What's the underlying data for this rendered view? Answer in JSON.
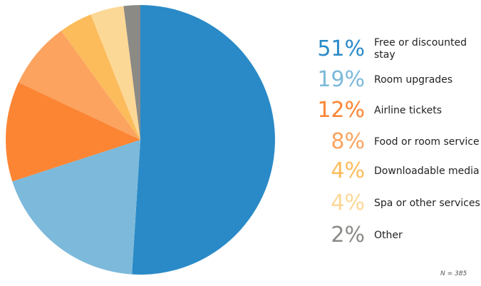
{
  "chart_data": {
    "type": "pie",
    "slices": [
      {
        "label": "Free or discounted stay",
        "value": 51,
        "display": "51%",
        "color": "#2a8ac7"
      },
      {
        "label": "Room upgrades",
        "value": 19,
        "display": "19%",
        "color": "#7cb9da"
      },
      {
        "label": "Airline tickets",
        "value": 12,
        "display": "12%",
        "color": "#fc8534"
      },
      {
        "label": "Food or room service",
        "value": 8,
        "display": "8%",
        "color": "#fba35f"
      },
      {
        "label": "Downloadable media",
        "value": 4,
        "display": "4%",
        "color": "#fcbc5c"
      },
      {
        "label": "Spa or other services",
        "value": 4,
        "display": "4%",
        "color": "#fcd896"
      },
      {
        "label": "Other",
        "value": 2,
        "display": "2%",
        "color": "#8c8a85"
      }
    ],
    "note": "N = 385",
    "legend_position": "right"
  }
}
